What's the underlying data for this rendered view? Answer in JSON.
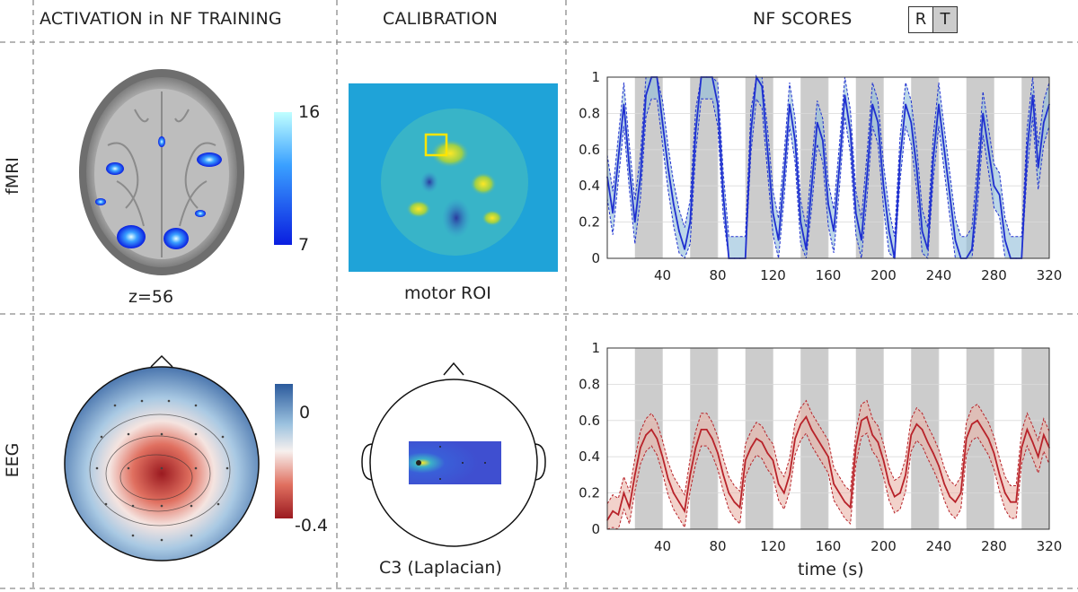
{
  "headers": {
    "activation": "ACTIVATION in NF TRAINING",
    "calibration": "CALIBRATION",
    "scores": "NF SCORES"
  },
  "legend": {
    "rest": "R",
    "task": "T",
    "rest_color": "#ffffff",
    "task_color": "#cccccc"
  },
  "rows": {
    "fmri": "fMRI",
    "eeg": "EEG"
  },
  "fmri": {
    "slice_label": "z=56",
    "colorbar_max": "16",
    "colorbar_min": "7",
    "roi_label": "motor ROI"
  },
  "eeg": {
    "colorbar_max": "0",
    "colorbar_min": "-0.4",
    "channel_label": "C3 (Laplacian)"
  },
  "xlabel": "time (s)",
  "chart_data": [
    {
      "type": "line",
      "name": "fMRI NF scores",
      "color": "#1f2fd0",
      "band_color": "#8fbcd8",
      "x_ticks": [
        40,
        80,
        120,
        160,
        200,
        240,
        280,
        320
      ],
      "y_ticks": [
        0,
        0.2,
        0.4,
        0.6,
        0.8,
        1
      ],
      "xlim": [
        0,
        320
      ],
      "ylim": [
        0,
        1
      ],
      "task_blocks": [
        [
          20,
          40
        ],
        [
          60,
          80
        ],
        [
          100,
          120
        ],
        [
          140,
          160
        ],
        [
          180,
          200
        ],
        [
          220,
          240
        ],
        [
          260,
          280
        ],
        [
          300,
          320
        ]
      ],
      "x": [
        0,
        4,
        8,
        12,
        16,
        20,
        24,
        28,
        32,
        36,
        40,
        44,
        48,
        52,
        56,
        60,
        64,
        68,
        72,
        76,
        80,
        84,
        88,
        92,
        96,
        100,
        104,
        108,
        112,
        116,
        120,
        124,
        128,
        132,
        136,
        140,
        144,
        148,
        152,
        156,
        160,
        164,
        168,
        172,
        176,
        180,
        184,
        188,
        192,
        196,
        200,
        204,
        208,
        212,
        216,
        220,
        224,
        228,
        232,
        236,
        240,
        244,
        248,
        252,
        256,
        260,
        264,
        268,
        272,
        276,
        280,
        284,
        288,
        292,
        296,
        300,
        304,
        308,
        312,
        316,
        320
      ],
      "mean": [
        0.45,
        0.25,
        0.55,
        0.85,
        0.5,
        0.2,
        0.45,
        0.9,
        1.0,
        1.0,
        0.75,
        0.5,
        0.3,
        0.15,
        0.05,
        0.2,
        0.7,
        1.0,
        1.0,
        1.0,
        0.85,
        0.35,
        0.0,
        0.0,
        0.0,
        0.0,
        0.7,
        1.0,
        0.95,
        0.6,
        0.25,
        0.1,
        0.45,
        0.85,
        0.65,
        0.2,
        0.05,
        0.4,
        0.75,
        0.65,
        0.3,
        0.15,
        0.5,
        0.9,
        0.7,
        0.25,
        0.1,
        0.45,
        0.85,
        0.75,
        0.4,
        0.15,
        0.0,
        0.55,
        0.85,
        0.75,
        0.5,
        0.15,
        0.05,
        0.55,
        0.85,
        0.6,
        0.35,
        0.1,
        0.0,
        0.0,
        0.05,
        0.4,
        0.8,
        0.6,
        0.4,
        0.35,
        0.1,
        0.0,
        0.0,
        0.0,
        0.6,
        0.9,
        0.5,
        0.75,
        0.85
      ],
      "spread": 0.12
    },
    {
      "type": "line",
      "name": "EEG NF scores",
      "color": "#b8232a",
      "band_color": "#e9b4a8",
      "x_ticks": [
        40,
        80,
        120,
        160,
        200,
        240,
        280,
        320
      ],
      "y_ticks": [
        0,
        0.2,
        0.4,
        0.6,
        0.8,
        1
      ],
      "xlim": [
        0,
        320
      ],
      "ylim": [
        0,
        1
      ],
      "task_blocks": [
        [
          20,
          40
        ],
        [
          60,
          80
        ],
        [
          100,
          120
        ],
        [
          140,
          160
        ],
        [
          180,
          200
        ],
        [
          220,
          240
        ],
        [
          260,
          280
        ],
        [
          300,
          320
        ]
      ],
      "x": [
        0,
        4,
        8,
        12,
        16,
        20,
        24,
        28,
        32,
        36,
        40,
        44,
        48,
        52,
        56,
        60,
        64,
        68,
        72,
        76,
        80,
        84,
        88,
        92,
        96,
        100,
        104,
        108,
        112,
        116,
        120,
        124,
        128,
        132,
        136,
        140,
        144,
        148,
        152,
        156,
        160,
        164,
        168,
        172,
        176,
        180,
        184,
        188,
        192,
        196,
        200,
        204,
        208,
        212,
        216,
        220,
        224,
        228,
        232,
        236,
        240,
        244,
        248,
        252,
        256,
        260,
        264,
        268,
        272,
        276,
        280,
        284,
        288,
        292,
        296,
        300,
        304,
        308,
        312,
        316,
        320
      ],
      "mean": [
        0.05,
        0.1,
        0.08,
        0.2,
        0.12,
        0.3,
        0.45,
        0.52,
        0.55,
        0.5,
        0.4,
        0.28,
        0.2,
        0.15,
        0.1,
        0.3,
        0.45,
        0.55,
        0.55,
        0.5,
        0.42,
        0.3,
        0.2,
        0.15,
        0.12,
        0.38,
        0.45,
        0.5,
        0.48,
        0.42,
        0.38,
        0.25,
        0.2,
        0.3,
        0.5,
        0.58,
        0.62,
        0.55,
        0.5,
        0.45,
        0.4,
        0.25,
        0.2,
        0.15,
        0.12,
        0.45,
        0.6,
        0.62,
        0.52,
        0.48,
        0.38,
        0.25,
        0.18,
        0.2,
        0.3,
        0.52,
        0.58,
        0.55,
        0.48,
        0.42,
        0.35,
        0.25,
        0.18,
        0.15,
        0.2,
        0.5,
        0.58,
        0.6,
        0.55,
        0.5,
        0.42,
        0.3,
        0.2,
        0.15,
        0.15,
        0.45,
        0.55,
        0.48,
        0.4,
        0.52,
        0.45
      ],
      "spread": 0.09
    }
  ]
}
